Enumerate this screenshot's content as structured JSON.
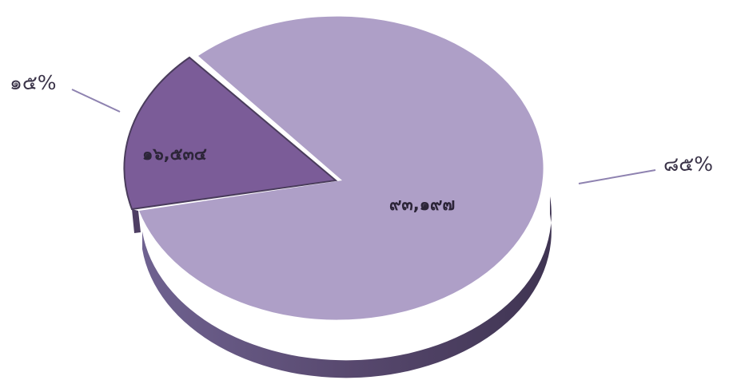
{
  "chart_data": {
    "type": "pie",
    "style": "3d",
    "slices": [
      {
        "value_label": "๙๓,๑๙๗",
        "percent_label": "๘๕%",
        "value": 93197,
        "percent": 85,
        "color": "#ae9fc7"
      },
      {
        "value_label": "๑๖,๕๓๔",
        "percent_label": "๑๕%",
        "value": 16534,
        "percent": 15,
        "color": "#7b5c98",
        "exploded": true
      }
    ],
    "leader_line_color": "#8e82b0"
  }
}
